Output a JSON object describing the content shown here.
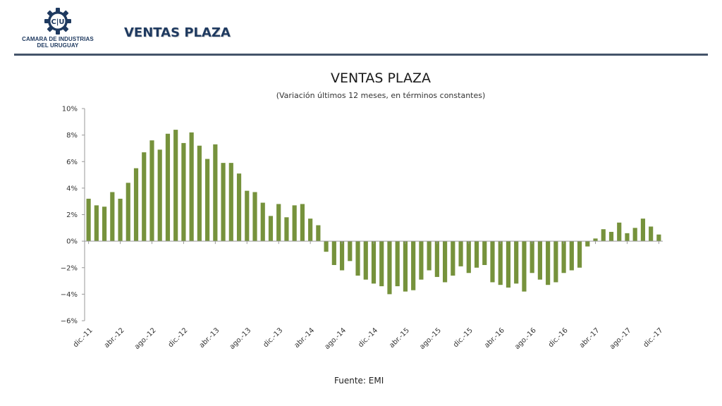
{
  "header": {
    "logo_line1": "CAMARA DE INDUSTRIAS",
    "logo_line2": "DEL URUGUAY",
    "logo_mark": "C|U",
    "title": "VENTAS PLAZA"
  },
  "footer": {
    "source": "Fuente: EMI"
  },
  "colors": {
    "bar": "#76923c",
    "header": "#1f3a60",
    "rule": "#44546a"
  },
  "chart_data": {
    "type": "bar",
    "title": "VENTAS PLAZA",
    "subtitle": "(Variación últimos 12 meses, en términos constantes)",
    "ylim": [
      -6,
      10
    ],
    "yticks": [
      10,
      8,
      6,
      4,
      2,
      0,
      -2,
      -4,
      -6
    ],
    "ytick_labels": [
      "10%",
      "8%",
      "6%",
      "4%",
      "2%",
      "0%",
      "−2%",
      "−4%",
      "−6%"
    ],
    "xtick_labels": [
      "dic.-11",
      "abr.-12",
      "ago.-12",
      "dic.-12",
      "abr.-13",
      "ago.-13",
      "dic.-13",
      "abr.-14",
      "ago.-14",
      "dic.-14",
      "abr.-15",
      "ago.-15",
      "dic.-15",
      "abr.-16",
      "ago.-16",
      "dic.-16",
      "abr.-17",
      "ago.-17",
      "dic.-17"
    ],
    "grid": false,
    "series": [
      {
        "values": [
          3.2,
          2.7,
          2.6,
          3.7,
          3.2,
          4.4,
          5.5,
          6.7,
          7.6,
          6.9,
          8.1,
          8.4,
          7.4,
          8.2,
          7.2,
          6.2,
          7.3,
          5.9,
          5.9,
          5.1,
          3.8,
          3.7,
          2.9,
          1.9,
          2.8,
          1.8,
          2.7,
          2.8,
          1.7,
          1.2,
          -0.8,
          -1.8,
          -2.2,
          -1.5,
          -2.6,
          -2.9,
          -3.2,
          -3.4,
          -4.0,
          -3.4,
          -3.8,
          -3.7,
          -2.9,
          -2.2,
          -2.7,
          -3.1,
          -2.6,
          -1.9,
          -2.4,
          -2.0,
          -1.8,
          -3.1,
          -3.3,
          -3.5,
          -3.2,
          -3.8,
          -2.4,
          -2.9,
          -3.3,
          -3.1,
          -2.4,
          -2.2,
          -2.0,
          -0.4,
          0.2,
          0.9,
          0.7,
          1.4,
          0.6,
          1.0,
          1.7,
          1.1,
          0.5
        ]
      }
    ]
  }
}
